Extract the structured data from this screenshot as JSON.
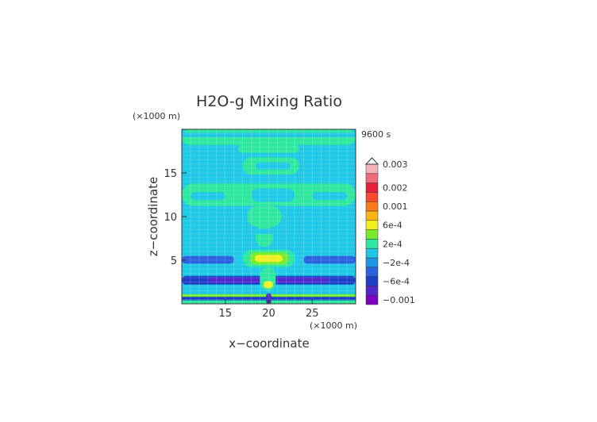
{
  "chart_data": {
    "type": "heatmap",
    "title": "H2O-g Mixing Ratio",
    "time_label": "9600 s",
    "xlabel": "x−coordinate",
    "ylabel": "z−coordinate",
    "x_unit": "(×1000 m)",
    "y_unit": "(×1000 m)",
    "xlim": [
      10,
      30
    ],
    "ylim": [
      0,
      20
    ],
    "xticks": [
      15,
      20,
      25
    ],
    "yticks": [
      5,
      10,
      15
    ],
    "grid": true,
    "colorbar": {
      "labels": [
        "0.003",
        "0.002",
        "0.001",
        "6e-4",
        "2e-4",
        "−2e-4",
        "−6e-4",
        "−0.001"
      ],
      "levels": [
        -0.001,
        -0.0008,
        -0.0006,
        -0.0004,
        -0.0002,
        0,
        0.0002,
        0.0004,
        0.0006,
        0.0008,
        0.001,
        0.0015,
        0.002,
        0.0025,
        0.003
      ],
      "colors": [
        "#7d00c4",
        "#5028cc",
        "#1e3ec8",
        "#2a62e0",
        "#1e96e6",
        "#1ec8e6",
        "#2ee8a0",
        "#78ec2a",
        "#f0f020",
        "#fcb412",
        "#ff7a18",
        "#ff4830",
        "#e81e3a",
        "#f06a78",
        "#f6b0b8"
      ]
    },
    "field": {
      "background_level": 5,
      "features": [
        {
          "x": [
            10,
            30
          ],
          "z": [
            18.2,
            20
          ],
          "level": 6
        },
        {
          "x": [
            10,
            30
          ],
          "z": [
            19.1,
            19.6
          ],
          "level": 5
        },
        {
          "x": [
            16.5,
            23.5
          ],
          "z": [
            17.3,
            18.3
          ],
          "level": 6
        },
        {
          "x": [
            17,
            23.5
          ],
          "z": [
            14.8,
            16.8
          ],
          "level": 6
        },
        {
          "x": [
            18.5,
            22.5
          ],
          "z": [
            15.4,
            16.2
          ],
          "level": 5
        },
        {
          "x": [
            10,
            30
          ],
          "z": [
            11.2,
            13.8
          ],
          "level": 6
        },
        {
          "x": [
            18,
            23
          ],
          "z": [
            11.7,
            13.2
          ],
          "level": 5
        },
        {
          "x": [
            11,
            15
          ],
          "z": [
            11.9,
            12.8
          ],
          "level": 5
        },
        {
          "x": [
            25,
            29
          ],
          "z": [
            11.9,
            12.8
          ],
          "level": 5
        },
        {
          "x": [
            17.5,
            21.5
          ],
          "z": [
            8.8,
            11.2
          ],
          "level": 6
        },
        {
          "x": [
            18.5,
            20.5
          ],
          "z": [
            6.5,
            9
          ],
          "level": 6
        },
        {
          "x": [
            10,
            30
          ],
          "z": [
            8,
            8.6
          ],
          "level": 5
        },
        {
          "x": [
            10,
            16
          ],
          "z": [
            4.6,
            5.5
          ],
          "level": 3
        },
        {
          "x": [
            24,
            30
          ],
          "z": [
            4.6,
            5.5
          ],
          "level": 3
        },
        {
          "x": [
            10,
            30
          ],
          "z": [
            2.2,
            3.2
          ],
          "level": 2
        },
        {
          "x": [
            13,
            27
          ],
          "z": [
            2.4,
            3
          ],
          "level": 1
        },
        {
          "x": [
            17,
            23
          ],
          "z": [
            4.2,
            6.2
          ],
          "level": 6
        },
        {
          "x": [
            17.8,
            22.3
          ],
          "z": [
            4.5,
            5.9
          ],
          "level": 7
        },
        {
          "x": [
            18.4,
            21.6
          ],
          "z": [
            4.8,
            5.6
          ],
          "level": 8
        },
        {
          "x": [
            19,
            20.8
          ],
          "z": [
            1.5,
            4.2
          ],
          "level": 6
        },
        {
          "x": [
            19.4,
            20.5
          ],
          "z": [
            1.8,
            2.6
          ],
          "level": 8
        },
        {
          "x": [
            10,
            30
          ],
          "z": [
            0.8,
            1.1
          ],
          "level": 7
        },
        {
          "x": [
            10,
            30
          ],
          "z": [
            0.4,
            0.8
          ],
          "level": 2
        },
        {
          "x": [
            10,
            30
          ],
          "z": [
            0,
            0.4
          ],
          "level": 6
        },
        {
          "x": [
            19.7,
            20.3
          ],
          "z": [
            0,
            1.2
          ],
          "level": 1
        }
      ]
    }
  }
}
